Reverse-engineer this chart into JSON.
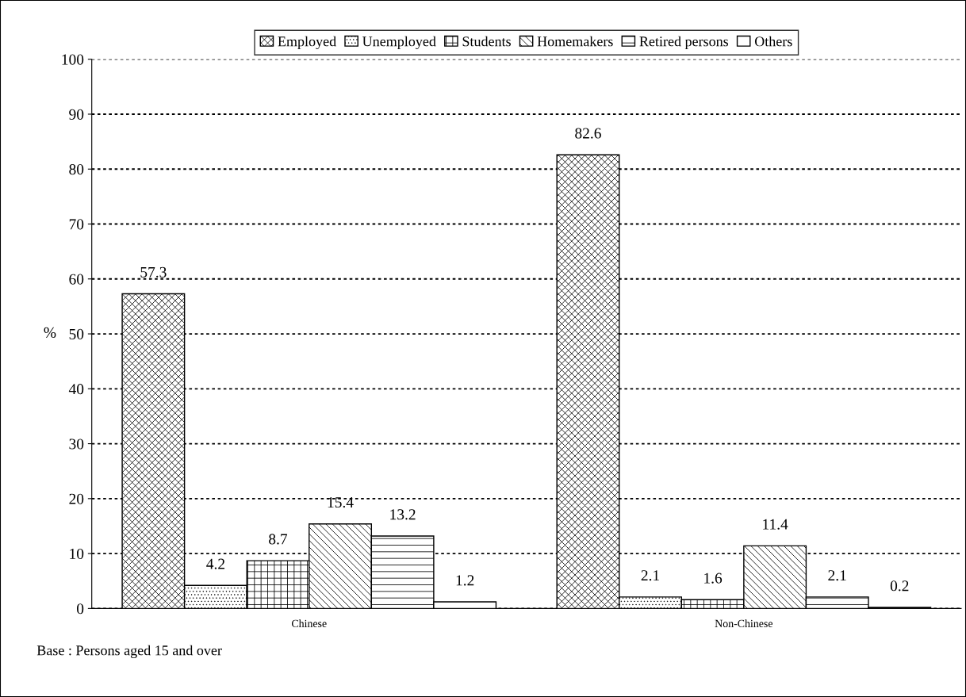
{
  "chart_data": {
    "type": "bar",
    "ylabel": "%",
    "categories": [
      "Chinese",
      "Non-Chinese"
    ],
    "series": [
      {
        "name": "Employed",
        "color": "#000000",
        "values": [
          57.3,
          82.6
        ]
      },
      {
        "name": "Unemployed",
        "color": "#000000",
        "values": [
          4.2,
          2.1
        ]
      },
      {
        "name": "Students",
        "color": "#000000",
        "values": [
          8.7,
          1.6
        ]
      },
      {
        "name": "Homemakers",
        "color": "#000000",
        "values": [
          15.4,
          11.4
        ]
      },
      {
        "name": "Retired persons",
        "color": "#000000",
        "values": [
          13.2,
          2.1
        ]
      },
      {
        "name": "Others",
        "color": "#000000",
        "values": [
          1.2,
          0.2
        ]
      }
    ],
    "ylim": [
      0,
      100
    ],
    "yticks": [
      0,
      10,
      20,
      30,
      40,
      50,
      60,
      70,
      80,
      90,
      100
    ],
    "grid": "y",
    "legend": "top",
    "data_labels": true,
    "annotations": [
      "Base : Persons aged 15 and over"
    ]
  }
}
